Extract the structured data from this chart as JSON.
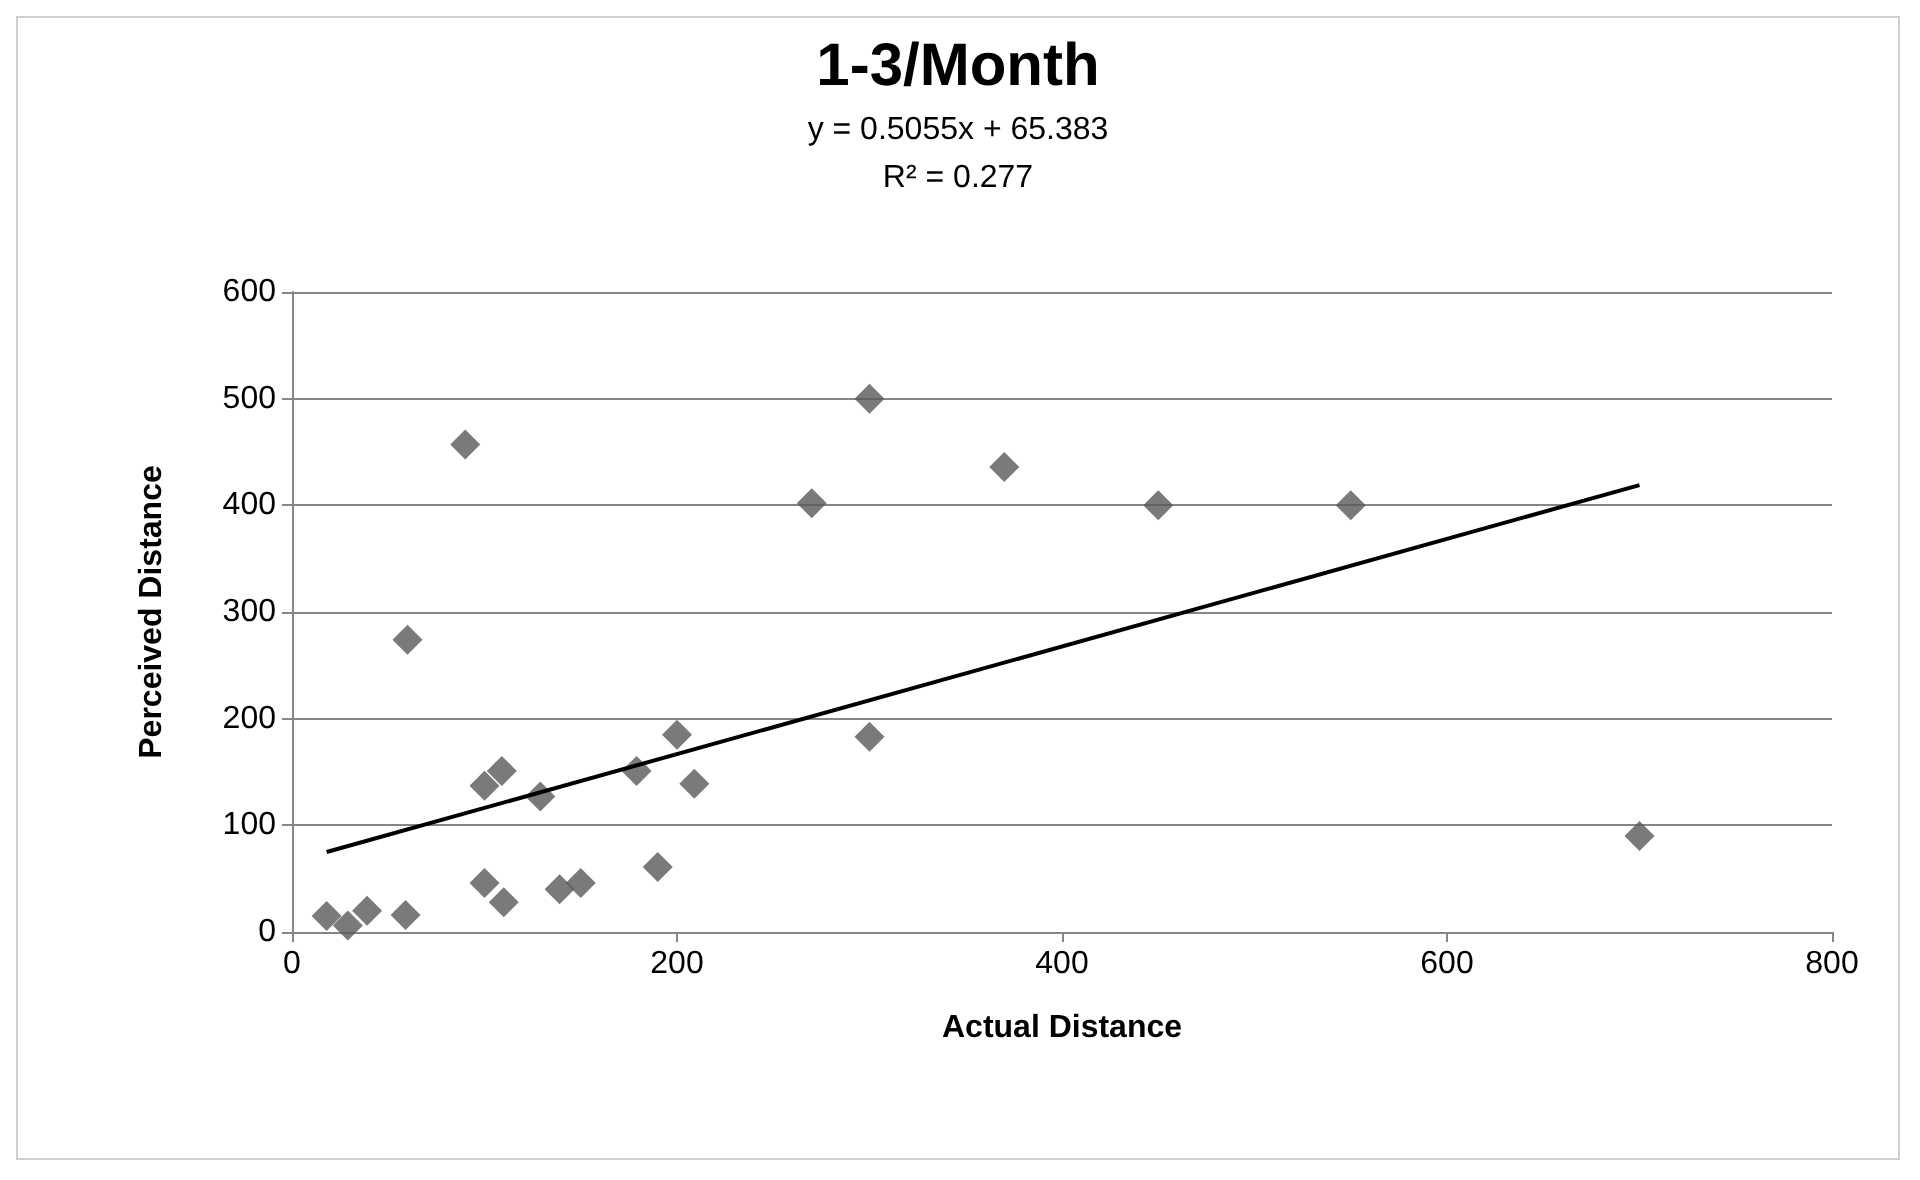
{
  "chart_data": {
    "type": "scatter",
    "title": "1-3/Month",
    "annotations": [
      "y = 0.5055x + 65.383",
      "R² = 0.277"
    ],
    "xlabel": "Actual Distance",
    "ylabel": "Perceived Distance",
    "xlim": [
      0,
      800
    ],
    "xticks": [
      0,
      200,
      400,
      600,
      800
    ],
    "ylim": [
      0,
      600
    ],
    "yticks": [
      0,
      100,
      200,
      300,
      400,
      500,
      600
    ],
    "grid": "y",
    "marker": "diamond",
    "series": [
      {
        "color": "#595959",
        "x": [
          18,
          29,
          39,
          59,
          100,
          110,
          100,
          109,
          129,
          139,
          150,
          179,
          190,
          200,
          209,
          60,
          90,
          270,
          300,
          370,
          450,
          550,
          300,
          700
        ],
        "values": [
          15,
          6,
          20,
          16,
          46,
          28,
          137,
          151,
          127,
          40,
          46,
          151,
          61,
          185,
          139,
          274,
          457,
          402,
          500,
          436,
          400,
          400,
          183,
          90
        ]
      },
      {
        "type": "line",
        "color": "#000000",
        "marker": "none",
        "x": [
          18,
          700
        ],
        "values": [
          75,
          419
        ]
      }
    ]
  }
}
